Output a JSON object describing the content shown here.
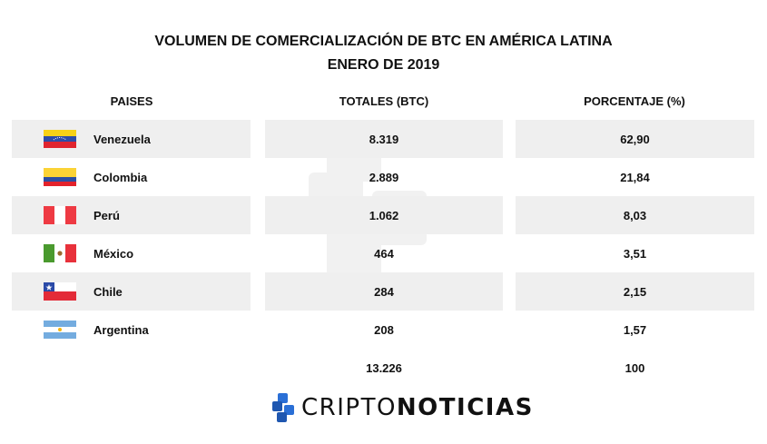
{
  "title": {
    "line1": "VOLUMEN DE COMERCIALIZACIÓN DE BTC EN AMÉRICA LATINA",
    "line2": "ENERO DE 2019"
  },
  "headers": {
    "country": "PAISES",
    "total": "TOTALES (BTC)",
    "percent": "PORCENTAJE (%)"
  },
  "rows": [
    {
      "country": "Venezuela",
      "flag": "venezuela-flag-icon",
      "total": "8.319",
      "percent": "62,90"
    },
    {
      "country": "Colombia",
      "flag": "colombia-flag-icon",
      "total": "2.889",
      "percent": "21,84"
    },
    {
      "country": "Perú",
      "flag": "peru-flag-icon",
      "total": "1.062",
      "percent": "8,03"
    },
    {
      "country": "México",
      "flag": "mexico-flag-icon",
      "total": "464",
      "percent": "3,51"
    },
    {
      "country": "Chile",
      "flag": "chile-flag-icon",
      "total": "284",
      "percent": "2,15"
    },
    {
      "country": "Argentina",
      "flag": "argentina-flag-icon",
      "total": "208",
      "percent": "1,57"
    }
  ],
  "totals": {
    "total": "13.226",
    "percent": "100"
  },
  "logo": {
    "part1": "CRIPTO",
    "part2": "NOTICIAS",
    "color": "#2a6fd6"
  },
  "colors": {
    "row_shade": "#efefef"
  }
}
